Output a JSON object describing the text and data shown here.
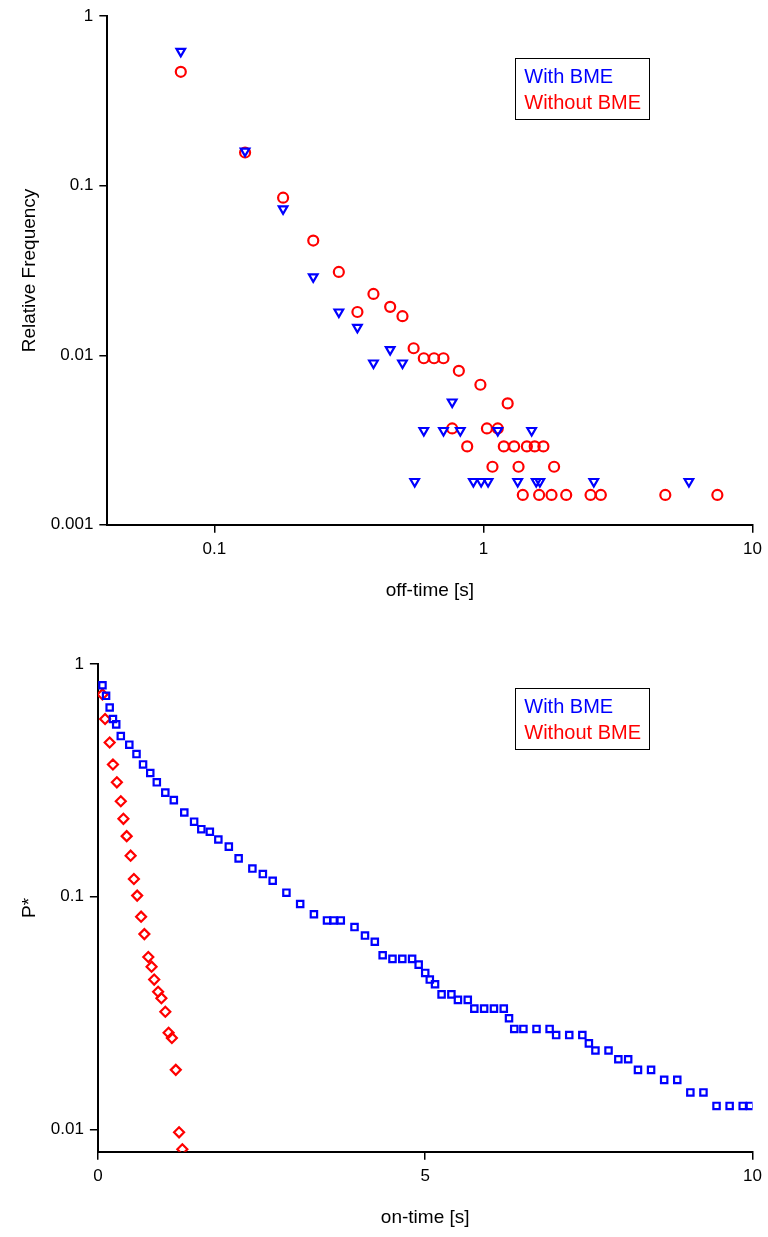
{
  "chart_data": [
    {
      "type": "scatter",
      "xlabel": "off-time [s]",
      "ylabel": "Relative Frequency",
      "log": "xy",
      "xlim": [
        0.04,
        10
      ],
      "ylim": [
        0.001,
        1
      ],
      "xticks": [
        0.1,
        1,
        10
      ],
      "yticks": [
        0.001,
        0.01,
        0.1,
        1
      ],
      "legend": "top right",
      "series": [
        {
          "name": "With BME",
          "color": "#0000ff",
          "marker": "triangle",
          "x": [
            0.075,
            0.13,
            0.18,
            0.233,
            0.29,
            0.34,
            0.39,
            0.45,
            0.5,
            0.555,
            0.6,
            0.71,
            0.765,
            0.82,
            0.917,
            0.98,
            1.04,
            1.13,
            1.34,
            1.51,
            1.57,
            1.62,
            2.57,
            5.8
          ],
          "values": [
            0.62,
            0.16,
            0.073,
            0.029,
            0.018,
            0.0146,
            0.009,
            0.0108,
            0.009,
            0.0018,
            0.0036,
            0.0036,
            0.0053,
            0.0036,
            0.0018,
            0.0018,
            0.0018,
            0.0036,
            0.0018,
            0.0036,
            0.0018,
            0.0018,
            0.0018,
            0.0018
          ]
        },
        {
          "name": "Without BME",
          "color": "#ff0000",
          "marker": "circle",
          "x": [
            0.075,
            0.13,
            0.18,
            0.233,
            0.29,
            0.34,
            0.39,
            0.45,
            0.5,
            0.55,
            0.6,
            0.655,
            0.71,
            0.81,
            0.974,
            1.23,
            0.765,
            1.03,
            1.13,
            0.87,
            1.19,
            1.3,
            1.45,
            1.55,
            1.67,
            1.08,
            1.35,
            1.83,
            1.4,
            1.61,
            1.79,
            2.03,
            2.5,
            2.73,
            4.74,
            7.4
          ],
          "values": [
            0.47,
            0.157,
            0.085,
            0.0475,
            0.031,
            0.018,
            0.023,
            0.0193,
            0.017,
            0.011,
            0.0096,
            0.0096,
            0.0096,
            0.0081,
            0.0067,
            0.0052,
            0.0037,
            0.0037,
            0.0037,
            0.0029,
            0.0029,
            0.0029,
            0.0029,
            0.0029,
            0.0029,
            0.0022,
            0.0022,
            0.0022,
            0.0015,
            0.0015,
            0.0015,
            0.0015,
            0.0015,
            0.0015,
            0.0015,
            0.0015
          ]
        }
      ]
    },
    {
      "type": "scatter",
      "xlabel": "on-time [s]",
      "ylabel": "P*",
      "log": "y",
      "xlim": [
        0,
        10
      ],
      "ylim": [
        0.008,
        1
      ],
      "xticks": [
        0,
        5,
        10
      ],
      "yticks": [
        0.01,
        0.1,
        1
      ],
      "legend": "top right",
      "series": [
        {
          "name": "With BME",
          "color": "#0000ff",
          "marker": "square",
          "x": [
            0.07,
            0.125,
            0.18,
            0.23,
            0.28,
            0.35,
            0.48,
            0.59,
            0.69,
            0.8,
            0.9,
            1.03,
            1.16,
            1.32,
            1.47,
            1.58,
            1.71,
            1.84,
            2.0,
            2.15,
            2.36,
            2.52,
            2.67,
            2.88,
            3.09,
            3.3,
            3.5,
            3.6,
            3.71,
            3.92,
            4.08,
            4.23,
            4.35,
            4.5,
            4.65,
            4.8,
            4.9,
            5.0,
            5.07,
            5.15,
            5.25,
            5.4,
            5.5,
            5.65,
            5.75,
            5.9,
            6.05,
            6.2,
            6.28,
            6.36,
            6.5,
            6.7,
            6.9,
            7.0,
            7.2,
            7.4,
            7.5,
            7.6,
            7.8,
            7.95,
            8.1,
            8.25,
            8.45,
            8.65,
            8.85,
            9.05,
            9.25,
            9.45,
            9.65,
            9.85,
            9.96
          ],
          "values": [
            0.81,
            0.73,
            0.65,
            0.58,
            0.55,
            0.49,
            0.45,
            0.41,
            0.37,
            0.34,
            0.31,
            0.28,
            0.26,
            0.23,
            0.21,
            0.195,
            0.19,
            0.176,
            0.164,
            0.146,
            0.132,
            0.125,
            0.117,
            0.104,
            0.093,
            0.084,
            0.079,
            0.079,
            0.079,
            0.074,
            0.068,
            0.064,
            0.056,
            0.054,
            0.054,
            0.054,
            0.051,
            0.047,
            0.044,
            0.042,
            0.038,
            0.038,
            0.036,
            0.036,
            0.033,
            0.033,
            0.033,
            0.033,
            0.03,
            0.027,
            0.027,
            0.027,
            0.027,
            0.0254,
            0.0254,
            0.0254,
            0.0234,
            0.0218,
            0.0218,
            0.02,
            0.02,
            0.018,
            0.018,
            0.0163,
            0.0163,
            0.0144,
            0.0144,
            0.0126,
            0.0126,
            0.0126,
            0.0126
          ]
        },
        {
          "name": "Without BME",
          "color": "#ff0000",
          "marker": "diamond",
          "x": [
            0.07,
            0.11,
            0.18,
            0.23,
            0.29,
            0.35,
            0.39,
            0.44,
            0.5,
            0.55,
            0.6,
            0.66,
            0.71,
            0.77,
            0.82,
            0.86,
            0.92,
            0.97,
            1.03,
            1.08,
            1.13,
            1.19,
            1.24,
            1.29
          ],
          "values": [
            0.74,
            0.58,
            0.46,
            0.37,
            0.31,
            0.257,
            0.216,
            0.182,
            0.15,
            0.119,
            0.101,
            0.082,
            0.069,
            0.055,
            0.05,
            0.044,
            0.039,
            0.0366,
            0.032,
            0.026,
            0.0247,
            0.018,
            0.0097,
            0.0082
          ]
        }
      ]
    }
  ]
}
